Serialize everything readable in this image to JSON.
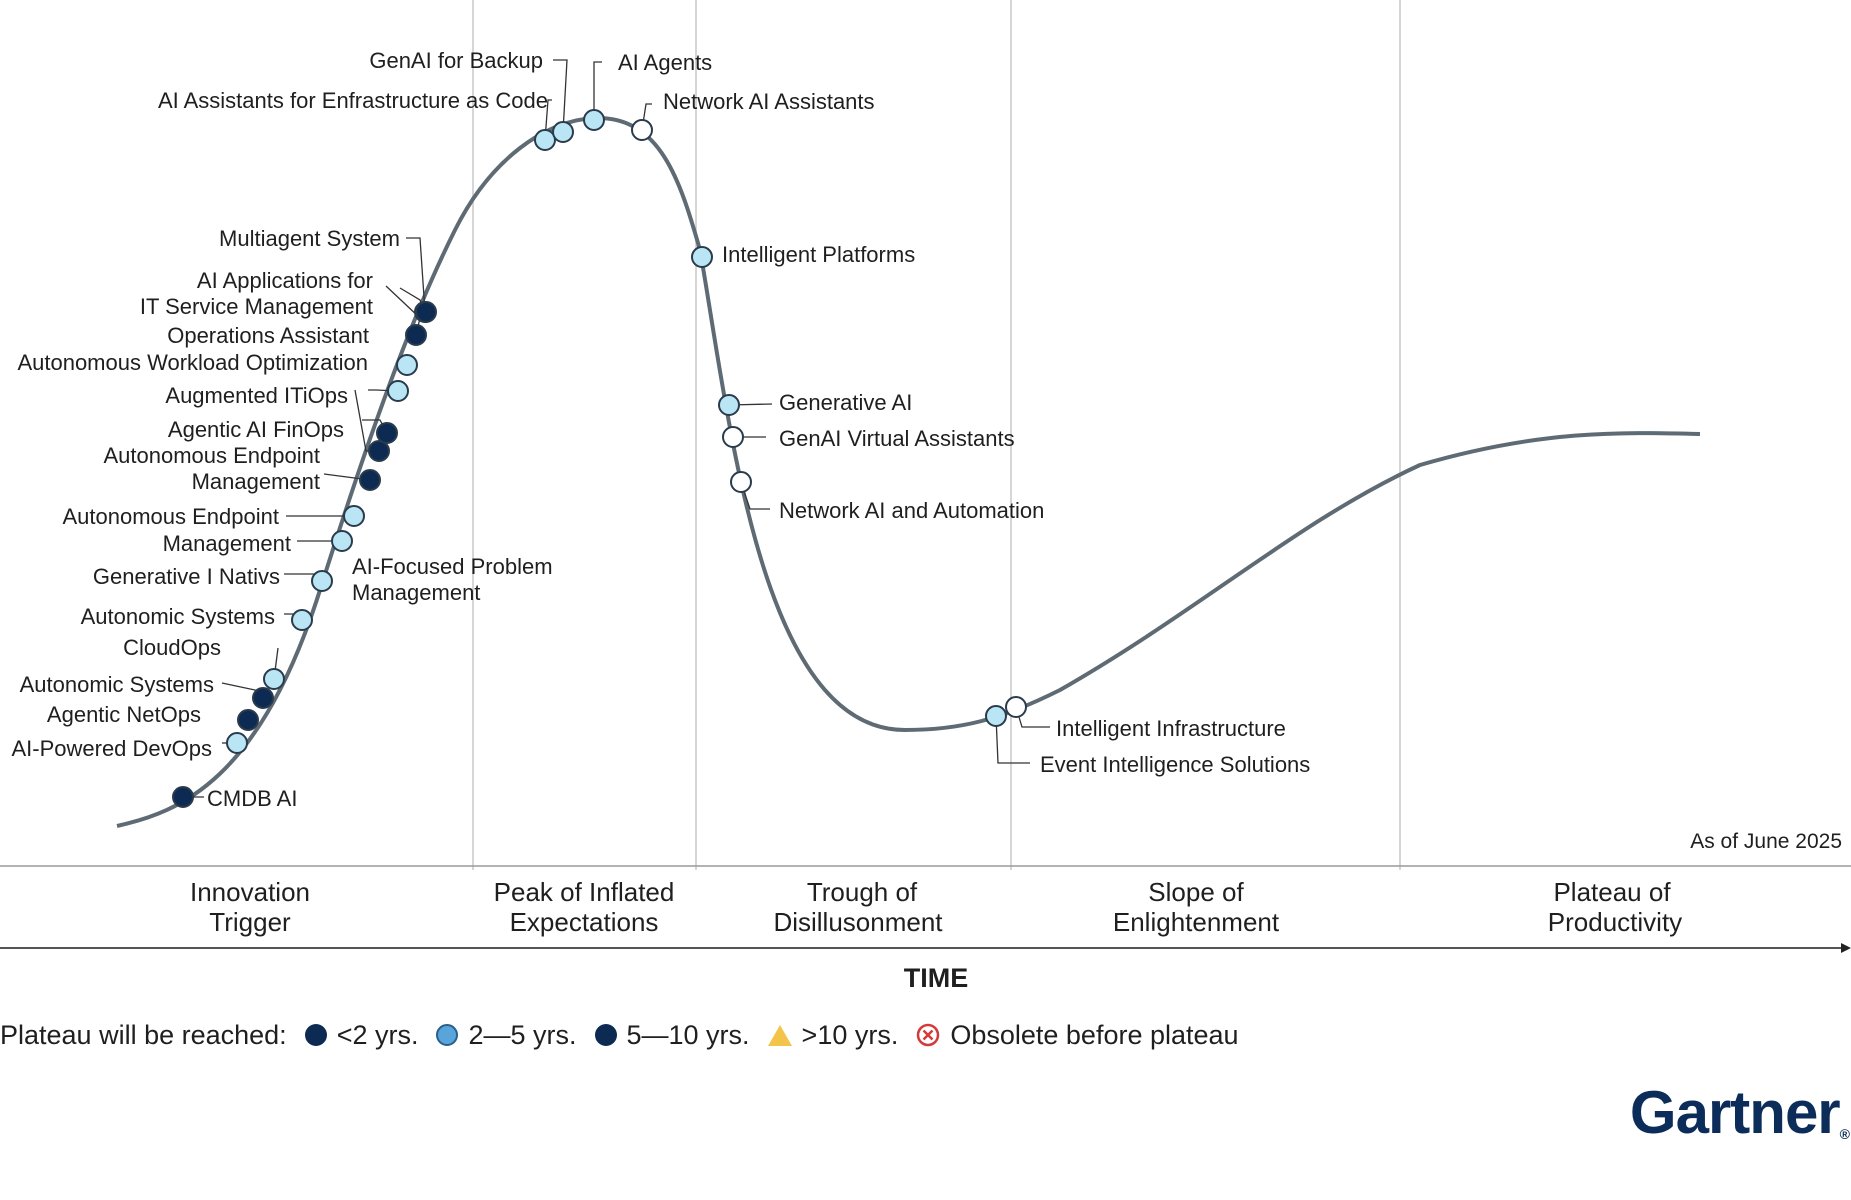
{
  "chart": {
    "time_label": "TIME",
    "as_of": "As of June 2025",
    "phases": [
      {
        "line1": "Innovation",
        "line2": "Trigger"
      },
      {
        "line1": "Peak of Inflated",
        "line2": "Expectations"
      },
      {
        "line1": "Trough of",
        "line2": "Disillusonment"
      },
      {
        "line1": "Slope of",
        "line2": "Enlightenment"
      },
      {
        "line1": "Plateau of",
        "line2": "Productivity"
      }
    ],
    "technologies": [
      {
        "name": "CMDB AI",
        "category": "5-10"
      },
      {
        "name": "AI-Powered DevOps",
        "category": "2-5"
      },
      {
        "name": "Agentic NetOps",
        "category": "5-10"
      },
      {
        "name": "Autonomic Systems",
        "category": "5-10"
      },
      {
        "name": "CloudOps",
        "category": "2-5"
      },
      {
        "name": "Autonomic Systems",
        "category": "2-5"
      },
      {
        "name": "Generative I Nativs",
        "category": "2-5"
      },
      {
        "name": "AI-Focused Problem",
        "line2": "Management",
        "category": "2-5"
      },
      {
        "name": "Autonomous Endpoint",
        "line2": "Management",
        "category": "5-10"
      },
      {
        "name": "Autonomous Endpoint",
        "category": "2-5"
      },
      {
        "name": "Management",
        "category": "5-10"
      },
      {
        "name": "Agentic AI FinOps",
        "category": "5-10"
      },
      {
        "name": "Augmented ITiOps",
        "category": "2-5"
      },
      {
        "name": "Autonomous Workload Optimization",
        "category": "2-5"
      },
      {
        "name": "Operations Assistant",
        "category": "5-10"
      },
      {
        "name": "AI Applications for",
        "line2": "IT Service Management",
        "category": "5-10"
      },
      {
        "name": "Multiagent System",
        "category": "5-10"
      },
      {
        "name": "AI Assistants for Enfrastructure as Code",
        "category": "2-5"
      },
      {
        "name": "GenAI for Backup",
        "category": "2-5"
      },
      {
        "name": "AI Agents",
        "category": "2-5"
      },
      {
        "name": "Network AI Assistants",
        "category": "white"
      },
      {
        "name": "Intelligent Platforms",
        "category": "2-5"
      },
      {
        "name": "Generative AI",
        "category": "2-5"
      },
      {
        "name": "GenAI Virtual Assistants",
        "category": "white"
      },
      {
        "name": "Network AI and Automation",
        "category": "white"
      },
      {
        "name": "Event Intelligence Solutions",
        "category": "2-5"
      },
      {
        "name": "Intelligent Infrastructure",
        "category": "white"
      }
    ]
  },
  "legend": {
    "title": "Plateau will be reached:",
    "items": [
      {
        "label": "<2 yrs.",
        "color": "#0d2b52"
      },
      {
        "label": "2—5 yrs.",
        "color": "#5aa4dc"
      },
      {
        "label": "5—10 yrs.",
        "color": "#0d2b52"
      },
      {
        "label": ">10 yrs.",
        "color": "#f2c44a"
      },
      {
        "label": "Obsolete before plateau",
        "color": "#d33b3b"
      }
    ]
  },
  "colors": {
    "dark_dot": "#0d2b52",
    "light_dot": "#b9e5f4",
    "white_dot": "#ffffff",
    "curve": "#5f6b74"
  },
  "brand": "Gartner"
}
